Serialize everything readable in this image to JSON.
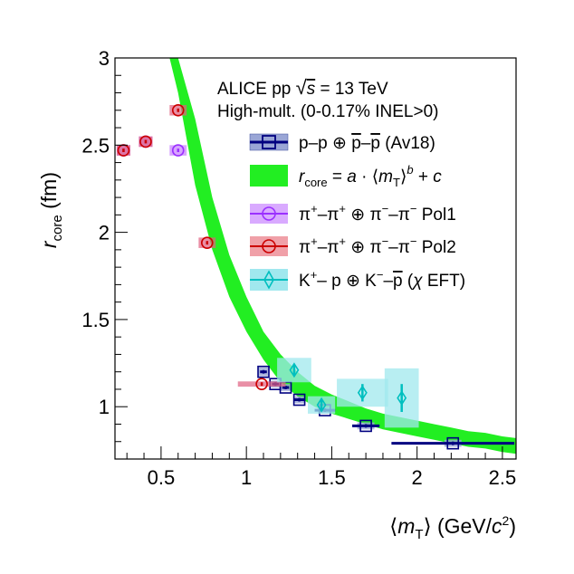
{
  "chart_data": {
    "type": "scatter",
    "title": "",
    "header": {
      "line1": "ALICE pp √s = 13 TeV",
      "line2": "High-mult. (0-0.17% INEL>0)"
    },
    "xlabel": "⟨m_T⟩ (GeV/c²)",
    "ylabel": "r_core (fm)",
    "xlim": [
      0.23,
      2.58
    ],
    "ylim": [
      0.7,
      3.0
    ],
    "xticks": [
      0.5,
      1.0,
      1.5,
      2.0,
      2.5
    ],
    "xtick_labels": [
      "0.5",
      "1",
      "1.5",
      "2",
      "2.5"
    ],
    "yticks": [
      1.0,
      1.5,
      2.0,
      2.5,
      3.0
    ],
    "ytick_labels": [
      "1",
      "1.5",
      "2",
      "2.5",
      "3"
    ],
    "legend_position": "top-right",
    "band": {
      "name": "r_core = a · ⟨m_T⟩^b + c",
      "color": "#22ee22",
      "x": [
        0.55,
        0.6,
        0.7,
        0.8,
        0.9,
        1.0,
        1.1,
        1.2,
        1.3,
        1.4,
        1.5,
        1.6,
        1.7,
        1.8,
        1.9,
        2.0,
        2.1,
        2.2,
        2.3,
        2.4,
        2.5,
        2.58
      ],
      "lower": [
        3.0,
        2.8,
        2.27,
        1.9,
        1.63,
        1.43,
        1.27,
        1.14,
        1.06,
        1.0,
        0.96,
        0.93,
        0.9,
        0.87,
        0.85,
        0.83,
        0.81,
        0.79,
        0.77,
        0.76,
        0.74,
        0.73
      ],
      "upper": [
        3.0,
        3.0,
        2.65,
        2.2,
        1.87,
        1.63,
        1.43,
        1.3,
        1.2,
        1.12,
        1.07,
        1.03,
        0.99,
        0.96,
        0.94,
        0.92,
        0.9,
        0.88,
        0.86,
        0.85,
        0.83,
        0.82
      ]
    },
    "series": [
      {
        "name": "p–p ⊕ p̅–p̅ (Av18)",
        "color": "#000080",
        "marker": "open-square",
        "points": [
          {
            "x": 1.1,
            "y": 1.2,
            "xerr": 0.02,
            "yerr": 0.01,
            "sx": 0.03,
            "sy": 0.025
          },
          {
            "x": 1.17,
            "y": 1.13,
            "xerr": 0.02,
            "yerr": 0.01,
            "sx": 0.03,
            "sy": 0.02
          },
          {
            "x": 1.23,
            "y": 1.11,
            "xerr": 0.02,
            "yerr": 0.01,
            "sx": 0.03,
            "sy": 0.02
          },
          {
            "x": 1.31,
            "y": 1.04,
            "xerr": 0.03,
            "yerr": 0.01,
            "sx": 0.03,
            "sy": 0.02
          },
          {
            "x": 1.46,
            "y": 0.98,
            "xerr": 0.06,
            "yerr": 0.01,
            "sx": 0.04,
            "sy": 0.02
          },
          {
            "x": 1.7,
            "y": 0.89,
            "xerr": 0.08,
            "yerr": 0.01,
            "sx": 0.05,
            "sy": 0.02
          },
          {
            "x": 2.21,
            "y": 0.79,
            "xerr": 0.36,
            "yerr": 0.01,
            "sx": 0.05,
            "sy": 0.02
          }
        ]
      },
      {
        "name": "π⁺–π⁺ ⊕ π⁻–π⁻ Pol1",
        "color": "#9b30ff",
        "band_color": "#c77dff",
        "marker": "open-circle",
        "points": [
          {
            "x": 0.28,
            "y": 2.47,
            "xerr": 0.0,
            "yerr": 0.01,
            "sx": 0.04,
            "sy": 0.03
          },
          {
            "x": 0.41,
            "y": 2.52,
            "xerr": 0.0,
            "yerr": 0.01,
            "sx": 0.04,
            "sy": 0.03
          },
          {
            "x": 0.6,
            "y": 2.47,
            "xerr": 0.0,
            "yerr": 0.01,
            "sx": 0.05,
            "sy": 0.03
          }
        ]
      },
      {
        "name": "π⁺–π⁺ ⊕ π⁻–π⁻ Pol2",
        "color": "#cc0000",
        "band_color": "#e06080",
        "marker": "open-circle",
        "points": [
          {
            "x": 0.28,
            "y": 2.47,
            "xerr": 0.0,
            "yerr": 0.01,
            "sx": 0.04,
            "sy": 0.03
          },
          {
            "x": 0.41,
            "y": 2.52,
            "xerr": 0.0,
            "yerr": 0.01,
            "sx": 0.04,
            "sy": 0.03
          },
          {
            "x": 0.6,
            "y": 2.7,
            "xerr": 0.0,
            "yerr": 0.01,
            "sx": 0.05,
            "sy": 0.03
          },
          {
            "x": 0.77,
            "y": 1.94,
            "xerr": 0.0,
            "yerr": 0.01,
            "sx": 0.05,
            "sy": 0.03
          },
          {
            "x": 1.09,
            "y": 1.13,
            "xerr": 0.0,
            "yerr": 0.01,
            "sx": 0.14,
            "sy": 0.015
          }
        ]
      },
      {
        "name": "K⁺– p ⊕ K⁻–p̅ (χEFT)",
        "color": "#00bfbf",
        "band_color": "#a0e8ee",
        "marker": "open-diamond",
        "points": [
          {
            "x": 1.28,
            "y": 1.21,
            "xerr": 0.0,
            "yerr": 0.03,
            "sx": 0.1,
            "sy": 0.07
          },
          {
            "x": 1.44,
            "y": 1.01,
            "xerr": 0.0,
            "yerr": 0.03,
            "sx": 0.08,
            "sy": 0.05
          },
          {
            "x": 1.68,
            "y": 1.08,
            "xerr": 0.0,
            "yerr": 0.05,
            "sx": 0.15,
            "sy": 0.08
          },
          {
            "x": 1.91,
            "y": 1.05,
            "xerr": 0.0,
            "yerr": 0.08,
            "sx": 0.1,
            "sy": 0.17
          }
        ]
      }
    ]
  }
}
